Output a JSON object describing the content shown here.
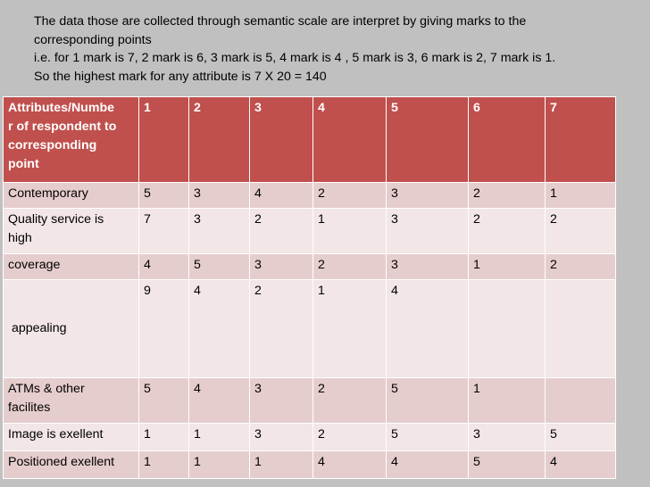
{
  "intro": {
    "lines": [
      "The data those are collected through semantic scale are interpret by giving marks to the",
      "corresponding points",
      "i.e. for 1 mark is 7, 2 mark is 6, 3 mark is 5, 4 mark is 4 , 5 mark is 3, 6 mark is 2, 7 mark is 1.",
      "So the highest mark for any attribute is 7 X 20 = 140"
    ]
  },
  "table": {
    "header": {
      "label_lines": [
        "Attributes/Numbe",
        "r of respondent to",
        "corresponding",
        "point"
      ],
      "columns": [
        "1",
        "2",
        "3",
        "4",
        "5",
        "6",
        "7"
      ]
    },
    "rows": [
      {
        "lines": [
          "Contemporary"
        ],
        "values": [
          "5",
          "3",
          "4",
          "2",
          "3",
          "2",
          "1"
        ]
      },
      {
        "lines": [
          "Quality service is",
          "high"
        ],
        "values": [
          "7",
          "3",
          "2",
          "1",
          "3",
          "2",
          "2"
        ]
      },
      {
        "lines": [
          "coverage"
        ],
        "values": [
          "4",
          "5",
          "3",
          "2",
          "3",
          "1",
          "2"
        ]
      },
      {
        "lines": [
          " appealing"
        ],
        "values": [
          "9",
          "4",
          "2",
          "1",
          "4",
          "",
          ""
        ]
      },
      {
        "lines": [
          "ATMs & other",
          "facilites"
        ],
        "values": [
          "5",
          "4",
          "3",
          "2",
          "5",
          "1",
          ""
        ]
      },
      {
        "lines": [
          "Image is exellent"
        ],
        "values": [
          "1",
          "1",
          "3",
          "2",
          "5",
          "3",
          "5"
        ]
      },
      {
        "lines": [
          "Positioned exellent"
        ],
        "values": [
          "1",
          "1",
          "1",
          "4",
          "4",
          "5",
          "4"
        ]
      }
    ]
  },
  "colors": {
    "header_bg": "#c0504d",
    "row_dark": "#e6cdcd",
    "row_light": "#f2e6e6",
    "slide_bg": "#c0c0c0"
  }
}
